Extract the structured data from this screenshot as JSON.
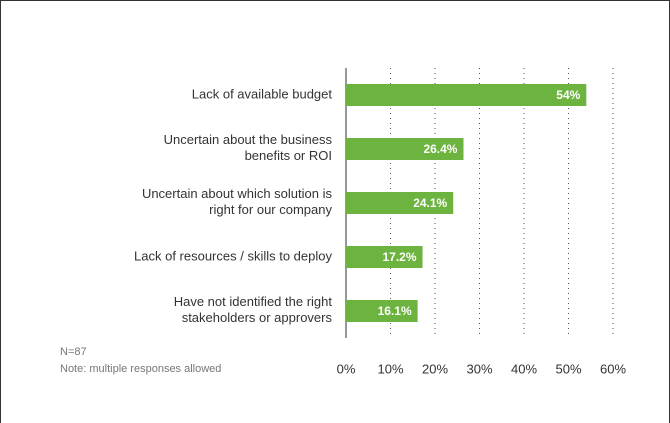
{
  "chart_data": {
    "type": "bar",
    "orientation": "horizontal",
    "categories": [
      "Lack of available budget",
      "Uncertain about the business\nbenefits or ROI",
      "Uncertain about which solution is\nright for our company",
      "Lack of resources / skills to deploy",
      "Have not identified the right\nstakeholders or approvers"
    ],
    "values": [
      54,
      26.4,
      24.1,
      17.2,
      16.1
    ],
    "value_labels": [
      "54%",
      "26.4%",
      "24.1%",
      "17.2%",
      "16.1%"
    ],
    "color": "#6db33f",
    "xlim": [
      0,
      60
    ],
    "xticks": [
      {
        "value": 0,
        "label": "0%"
      },
      {
        "value": 10,
        "label": "10%"
      },
      {
        "value": 20,
        "label": "20%"
      },
      {
        "value": 30,
        "label": "30%"
      },
      {
        "value": 40,
        "label": "40%"
      },
      {
        "value": 50,
        "label": "50%"
      },
      {
        "value": 60,
        "label": "60%"
      }
    ],
    "grid": true,
    "notes": [
      "N=87",
      "Note: multiple responses allowed"
    ]
  }
}
